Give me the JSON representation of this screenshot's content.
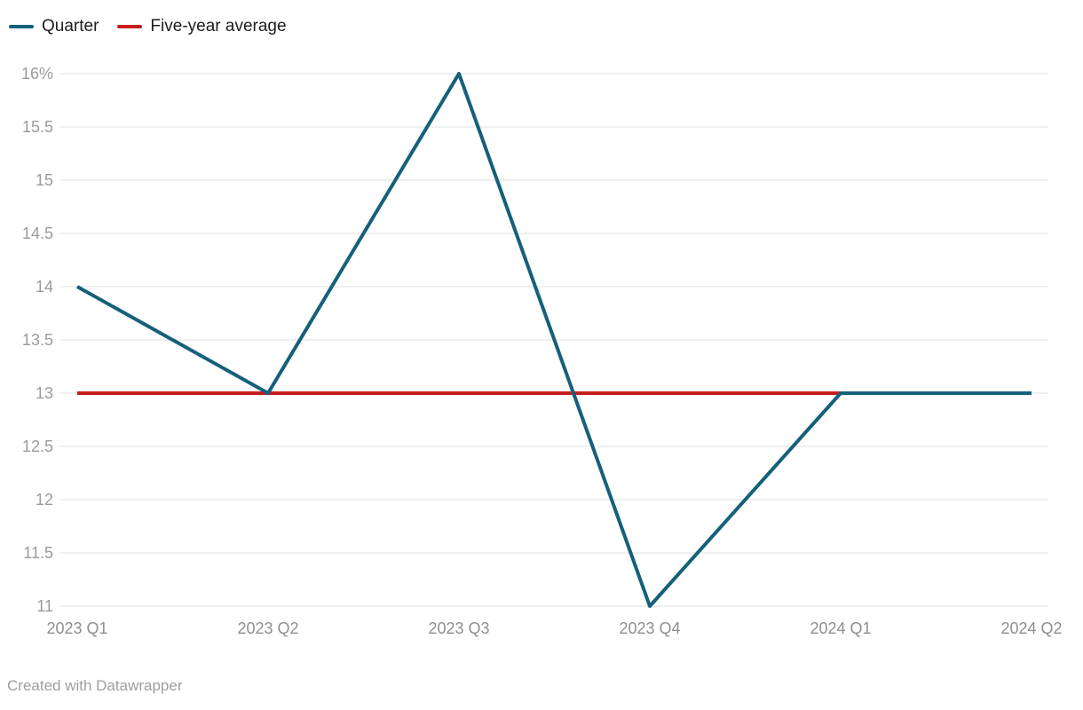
{
  "legend": {
    "items": [
      {
        "label": "Quarter",
        "color": "#15607a"
      },
      {
        "label": "Five-year average",
        "color": "#c71e1d"
      }
    ]
  },
  "chart_data": {
    "type": "line",
    "title": "",
    "xlabel": "",
    "ylabel": "",
    "categories": [
      "2023 Q1",
      "2023 Q2",
      "2023 Q3",
      "2023 Q4",
      "2024 Q1",
      "2024 Q2"
    ],
    "series": [
      {
        "name": "Five-year average",
        "color": "#c71e1d",
        "values": [
          13,
          13,
          13,
          13,
          13,
          13
        ]
      },
      {
        "name": "Quarter",
        "color": "#15607a",
        "values": [
          14,
          13,
          16,
          11,
          13,
          13
        ]
      }
    ],
    "ylim": [
      11,
      16
    ],
    "ytick_step": 0.5,
    "ytick_labels": [
      "11",
      "11.5",
      "12",
      "12.5",
      "13",
      "13.5",
      "14",
      "14.5",
      "15",
      "15.5",
      "16%"
    ],
    "grid": true,
    "legend_position": "top-left"
  },
  "style": {
    "grid_color": "#dfdfdf",
    "ytick_color": "#9b9b9b",
    "xtick_color": "#8f8f8f",
    "legend_text_color": "#1d1d1d",
    "footer_color": "#9e9e9e",
    "background": "#ffffff",
    "line_width": 4
  },
  "footer": {
    "text": "Created with Datawrapper"
  }
}
